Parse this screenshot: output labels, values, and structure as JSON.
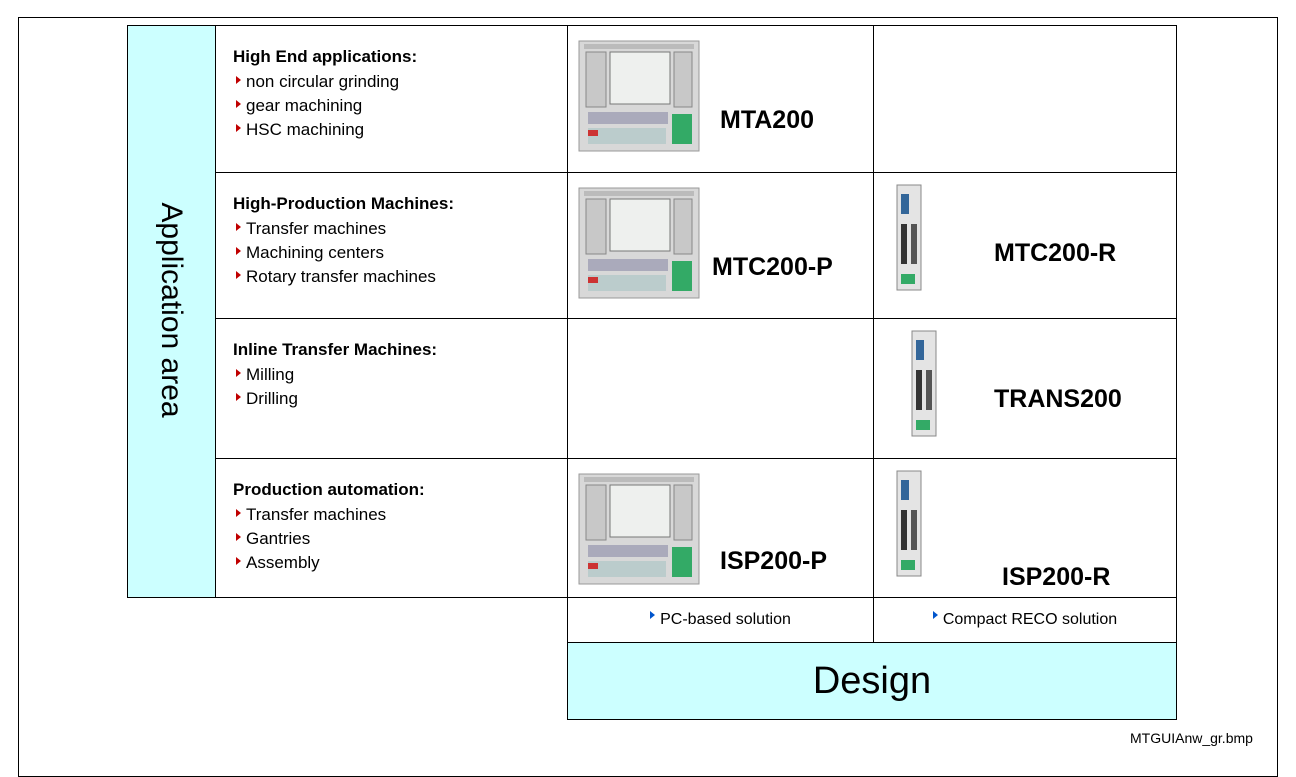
{
  "title": "Application area",
  "rows": [
    {
      "heading": "High End applications:",
      "items": [
        "non circular grinding",
        "gear machining",
        "HSC machining"
      ],
      "pc": "MTA200"
    },
    {
      "heading": "High-Production Machines:",
      "items": [
        "Transfer machines",
        "Machining centers",
        "Rotary transfer machines"
      ],
      "pc": "MTC200-P",
      "reco": "MTC200-R"
    },
    {
      "heading": "Inline Transfer Machines:",
      "items": [
        "Milling",
        "Drilling"
      ],
      "reco": "TRANS200"
    },
    {
      "heading": "Production automation:",
      "items": [
        "Transfer machines",
        "Gantries",
        "Assembly"
      ],
      "pc": "ISP200-P",
      "reco": "ISP200-R"
    }
  ],
  "columns": [
    "PC-based solution",
    "Compact RECO solution"
  ],
  "footer_title": "Design",
  "filename": "MTGUIAnw_gr.bmp"
}
